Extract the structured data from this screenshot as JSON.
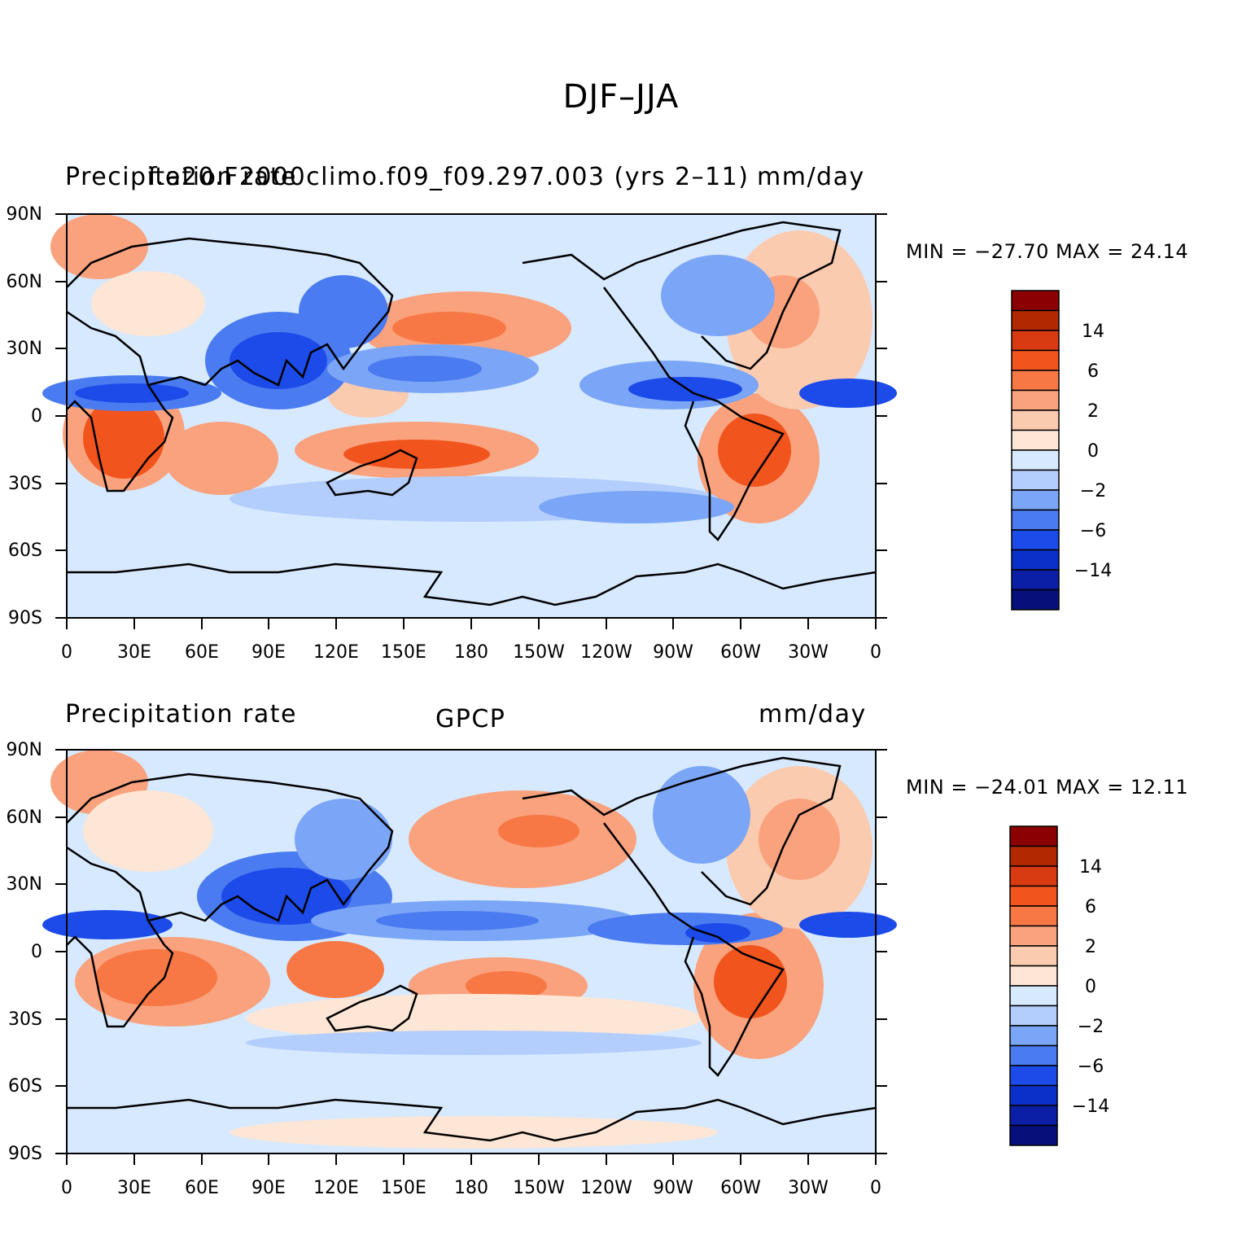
{
  "title": "DJF–JJA",
  "panels": [
    {
      "left_string": "Precipitation rate",
      "center_string": "f.e20.F2000climo.f09_f09.297.003 (yrs 2–11)",
      "right_string": "mm/day",
      "min_max": "MIN = −27.70 MAX =   24.14"
    },
    {
      "left_string": "Precipitation rate",
      "center_string": "GPCP",
      "right_string": "mm/day",
      "min_max": "MIN = −24.01 MAX =   12.11"
    }
  ],
  "lat_ticks": [
    "90N",
    "60N",
    "30N",
    "0",
    "30S",
    "60S",
    "90S"
  ],
  "lon_ticks": [
    "0",
    "30E",
    "60E",
    "90E",
    "120E",
    "150E",
    "180",
    "150W",
    "120W",
    "90W",
    "60W",
    "30W",
    "0"
  ],
  "colorbar": {
    "labels": [
      "14",
      "6",
      "2",
      "0",
      "−2",
      "−6",
      "−14"
    ],
    "colors": [
      "#8b0000",
      "#b22800",
      "#d83a12",
      "#f2541e",
      "#f77845",
      "#f9a27d",
      "#fbcbaf",
      "#fde6d5",
      "#d6e9ff",
      "#b3cdfc",
      "#7ba5f6",
      "#4a7bf0",
      "#1c4be9",
      "#0a30c9",
      "#0a1fa5",
      "#06107a"
    ]
  },
  "palette": {
    "ocean_neutral": "#d6e9ff",
    "light_positive": "#fde6d5",
    "positive": "#f9a27d",
    "strong_positive": "#f2541e",
    "negative": "#7ba5f6",
    "strong_negative": "#1c4be9"
  }
}
